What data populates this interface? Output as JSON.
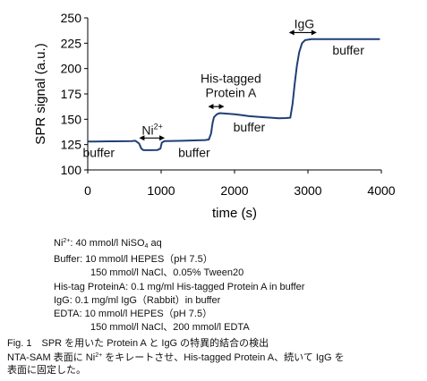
{
  "chart_data": {
    "type": "line",
    "xlabel": "time (s)",
    "ylabel": "SPR signal (a.u.)",
    "xlim": [
      0,
      4000
    ],
    "ylim": [
      100,
      250
    ],
    "xticks": [
      0,
      1000,
      2000,
      3000,
      4000
    ],
    "yticks": [
      100,
      125,
      150,
      175,
      200,
      225,
      250
    ],
    "grid": false,
    "series": [
      {
        "values": [
          [
            0,
            128
          ],
          [
            100,
            128
          ],
          [
            300,
            128.2
          ],
          [
            500,
            128.3
          ],
          [
            600,
            128.5
          ],
          [
            650,
            128.8
          ],
          [
            700,
            126
          ],
          [
            730,
            121
          ],
          [
            760,
            119.5
          ],
          [
            850,
            119.5
          ],
          [
            950,
            119.7
          ],
          [
            990,
            121
          ],
          [
            1010,
            127
          ],
          [
            1050,
            128.5
          ],
          [
            1150,
            128.6
          ],
          [
            1300,
            128.8
          ],
          [
            1400,
            129
          ],
          [
            1500,
            129.2
          ],
          [
            1600,
            129.5
          ],
          [
            1650,
            130
          ],
          [
            1680,
            136
          ],
          [
            1700,
            146
          ],
          [
            1720,
            152
          ],
          [
            1760,
            155
          ],
          [
            1800,
            156
          ],
          [
            1900,
            155.5
          ],
          [
            2000,
            155
          ],
          [
            2100,
            154
          ],
          [
            2200,
            153
          ],
          [
            2300,
            152.5
          ],
          [
            2400,
            152
          ],
          [
            2500,
            151.5
          ],
          [
            2600,
            151
          ],
          [
            2700,
            151.2
          ],
          [
            2760,
            151.5
          ],
          [
            2790,
            165
          ],
          [
            2820,
            185
          ],
          [
            2850,
            203
          ],
          [
            2880,
            216
          ],
          [
            2920,
            225
          ],
          [
            2960,
            228
          ],
          [
            3050,
            229
          ],
          [
            3300,
            229
          ],
          [
            3600,
            229
          ],
          [
            3980,
            229
          ]
        ]
      }
    ],
    "annotations": [
      {
        "text": "buffer",
        "x": 150,
        "y": 113
      },
      {
        "text": "Ni",
        "sup": "2+",
        "x": 880,
        "y": 135
      },
      {
        "text": "buffer",
        "x": 1450,
        "y": 113
      },
      {
        "text": "His-tagged",
        "x": 1950,
        "y": 186
      },
      {
        "text": "Protein A",
        "x": 1950,
        "y": 172
      },
      {
        "text": "buffer",
        "x": 2200,
        "y": 138
      },
      {
        "text": "IgG",
        "x": 2950,
        "y": 240
      },
      {
        "text": "buffer",
        "x": 3550,
        "y": 214
      }
    ],
    "arrows": [
      {
        "x1": 700,
        "x2": 1050,
        "y": 131.5
      },
      {
        "x1": 1640,
        "x2": 1860,
        "y": 162.5
      },
      {
        "x1": 2740,
        "x2": 3120,
        "y": 235.5
      }
    ]
  },
  "notes": {
    "ni": {
      "text": "Ni",
      "sup": "2+",
      "rest": ": 40 mmol/l NiSO",
      "sub": "4",
      "tail": " aq"
    },
    "buffer_line1": "Buffer: 10 mmol/l HEPES（pH 7.5）",
    "buffer_line2": "150 mmol/l NaCl、0.05% Tween20",
    "his": "His-tag ProteinA: 0.1 mg/ml His-tagged Protein A in buffer",
    "igg": "IgG: 0.1 mg/ml IgG（Rabbit）in buffer",
    "edta_line1": "EDTA: 10 mmol/l HEPES（pH 7.5）",
    "edta_line2": "150 mmol/l NaCl、200 mmol/l EDTA"
  },
  "caption": {
    "line1": "Fig. 1　SPR を用いた Protein A と IgG の特異的結合の検出",
    "line2_a": "NTA-SAM 表面に Ni",
    "line2_sup": "2+",
    "line2_b": " をキレートさせ、His-tagged Protein A、続いて IgG を",
    "line3": "表面に固定した。"
  }
}
